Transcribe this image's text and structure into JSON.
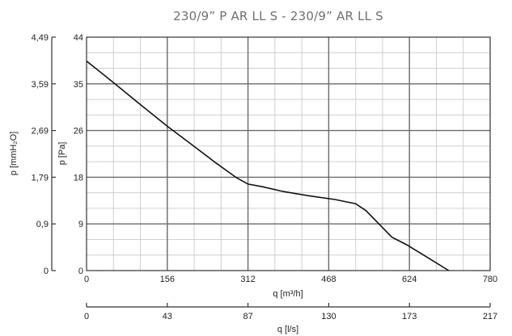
{
  "chart_data": {
    "type": "line",
    "title": "230/9” P AR LL S - 230/9” AR LL S",
    "xlabel": "q [m³/h]",
    "ylabel": "p [Pa]",
    "xlim": [
      0,
      780
    ],
    "ylim": [
      0,
      44
    ],
    "x_ticks": [
      "0",
      "156",
      "312",
      "468",
      "624",
      "780"
    ],
    "y_ticks": [
      "0",
      "9",
      "18",
      "26",
      "35",
      "44"
    ],
    "grid": true,
    "secondary_y_axis": {
      "label": "p [mmH₂O]",
      "ticks": [
        "0",
        "0,9",
        "1,79",
        "2,69",
        "3,59",
        "4,49"
      ]
    },
    "secondary_x_axis": {
      "label": "q [l/s]",
      "ticks": [
        "0",
        "43",
        "87",
        "130",
        "173",
        "217"
      ]
    },
    "x": [
      0,
      50,
      100,
      156,
      200,
      250,
      290,
      312,
      340,
      380,
      430,
      480,
      520,
      540,
      560,
      575,
      590,
      620,
      660,
      700
    ],
    "y": [
      39.5,
      35.6,
      31.6,
      27.2,
      24.0,
      20.3,
      17.5,
      16.3,
      15.8,
      14.9,
      14.1,
      13.4,
      12.6,
      11.3,
      9.3,
      7.8,
      6.3,
      4.8,
      2.4,
      0
    ]
  }
}
